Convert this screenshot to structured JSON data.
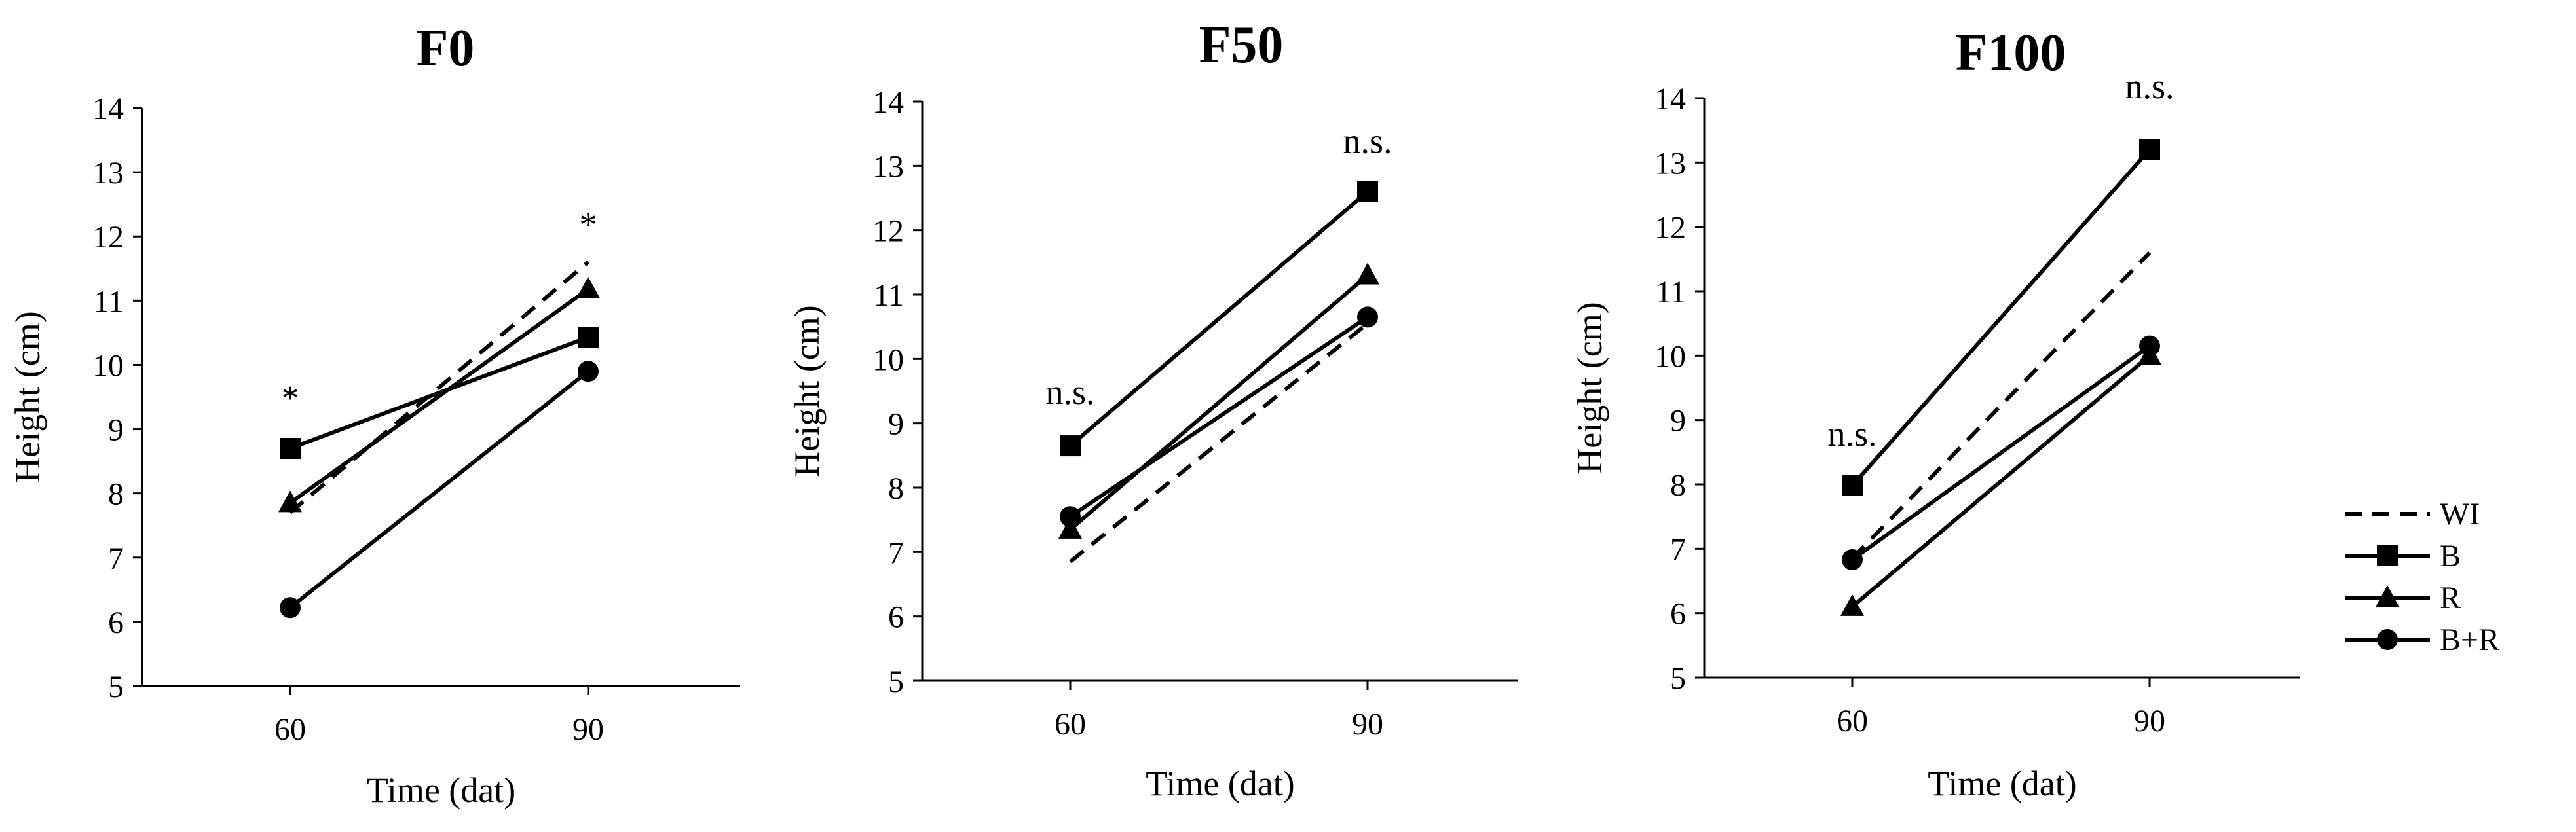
{
  "chart_data": [
    {
      "type": "line",
      "title": "F0",
      "xlabel": "Time (dat)",
      "ylabel": "Height (cm)",
      "categories": [
        "60",
        "90"
      ],
      "ylim": [
        5,
        14
      ],
      "yticks": [
        "5",
        "6",
        "7",
        "8",
        "9",
        "10",
        "11",
        "12",
        "13",
        "14"
      ],
      "series": [
        {
          "name": "WI",
          "values": [
            7.7,
            11.6
          ]
        },
        {
          "name": "B",
          "values": [
            8.7,
            10.43
          ]
        },
        {
          "name": "R",
          "values": [
            7.85,
            11.18
          ]
        },
        {
          "name": "B+R",
          "values": [
            6.22,
            9.9
          ]
        }
      ],
      "annotations": [
        {
          "category": "60",
          "text": "*",
          "y": 9.3
        },
        {
          "category": "90",
          "text": "*",
          "y": 12.0
        }
      ]
    },
    {
      "type": "line",
      "title": "F50",
      "xlabel": "Time (dat)",
      "ylabel": "Height (cm)",
      "categories": [
        "60",
        "90"
      ],
      "ylim": [
        5,
        14
      ],
      "yticks": [
        "5",
        "6",
        "7",
        "8",
        "9",
        "10",
        "11",
        "12",
        "13",
        "14"
      ],
      "series": [
        {
          "name": "WI",
          "values": [
            6.85,
            10.55
          ]
        },
        {
          "name": "B",
          "values": [
            8.65,
            12.6
          ]
        },
        {
          "name": "R",
          "values": [
            7.35,
            11.3
          ]
        },
        {
          "name": "B+R",
          "values": [
            7.55,
            10.65
          ]
        }
      ],
      "annotations": [
        {
          "category": "60",
          "text": "n.s.",
          "y": 9.3
        },
        {
          "category": "90",
          "text": "n.s.",
          "y": 13.2
        }
      ]
    },
    {
      "type": "line",
      "title": "F100",
      "xlabel": "Time (dat)",
      "ylabel": "Height (cm)",
      "categories": [
        "60",
        "90"
      ],
      "ylim": [
        5,
        14
      ],
      "yticks": [
        "5",
        "6",
        "7",
        "8",
        "9",
        "10",
        "11",
        "12",
        "13",
        "14"
      ],
      "series": [
        {
          "name": "WI",
          "values": [
            6.85,
            11.6
          ]
        },
        {
          "name": "B",
          "values": [
            7.98,
            13.2
          ]
        },
        {
          "name": "R",
          "values": [
            6.1,
            10.0
          ]
        },
        {
          "name": "B+R",
          "values": [
            6.83,
            10.15
          ]
        }
      ],
      "annotations": [
        {
          "category": "60",
          "text": "n.s.",
          "y": 8.6
        },
        {
          "category": "90",
          "text": "n.s.",
          "y": 14.0
        }
      ]
    }
  ],
  "legend": {
    "position": "right",
    "entries": [
      {
        "name": "WI",
        "marker": "none",
        "dashed": true
      },
      {
        "name": "B",
        "marker": "square",
        "dashed": false
      },
      {
        "name": "R",
        "marker": "triangle",
        "dashed": false
      },
      {
        "name": "B+R",
        "marker": "circle",
        "dashed": false
      }
    ]
  },
  "colors": {
    "ink": "#000000",
    "background": "#ffffff"
  }
}
